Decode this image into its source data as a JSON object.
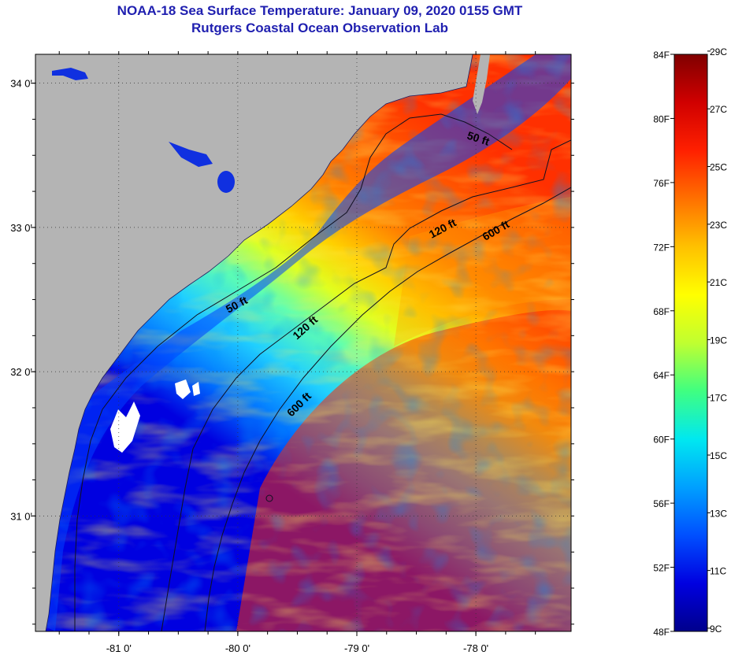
{
  "header": {
    "title": "NOAA-18 Sea Surface Temperature:  January 09, 2020 0155 GMT",
    "subtitle": "Rutgers Coastal Ocean Observation Lab"
  },
  "map": {
    "lon_range": [
      -81.7,
      -77.2
    ],
    "lat_range": [
      30.2,
      34.2
    ],
    "lon_ticks": [
      {
        "value": -81,
        "label": "-81 0'"
      },
      {
        "value": -80,
        "label": "-80 0'"
      },
      {
        "value": -79,
        "label": "-79 0'"
      },
      {
        "value": -78,
        "label": "-78 0'"
      }
    ],
    "lat_ticks": [
      {
        "value": 34,
        "label": "34 0'"
      },
      {
        "value": 33,
        "label": "33 0'"
      },
      {
        "value": 32,
        "label": "32 0'"
      },
      {
        "value": 31,
        "label": "31 0'"
      }
    ],
    "land_color": "#b4b4b4",
    "contour_labels": [
      {
        "text": "50 ft",
        "key": "c50a"
      },
      {
        "text": "50 ft",
        "key": "c50b"
      },
      {
        "text": "120 ft",
        "key": "c120a"
      },
      {
        "text": "120 ft",
        "key": "c120b"
      },
      {
        "text": "600 ft",
        "key": "c600a"
      },
      {
        "text": "600 ft",
        "key": "c600b"
      }
    ]
  },
  "colorbar": {
    "f_labels": [
      "84F",
      "80F",
      "76F",
      "72F",
      "68F",
      "64F",
      "60F",
      "56F",
      "52F",
      "48F"
    ],
    "c_labels": [
      "29C",
      "27C",
      "25C",
      "23C",
      "21C",
      "19C",
      "17C",
      "15C",
      "13C",
      "11C",
      "9C"
    ],
    "f_range": [
      48,
      84
    ],
    "stops": [
      "#00008c",
      "#0000e0",
      "#0050ff",
      "#00a0ff",
      "#00e8f0",
      "#40ff80",
      "#c0ff30",
      "#ffff00",
      "#ffc000",
      "#ff7000",
      "#ff2000",
      "#d00000",
      "#800000"
    ]
  }
}
